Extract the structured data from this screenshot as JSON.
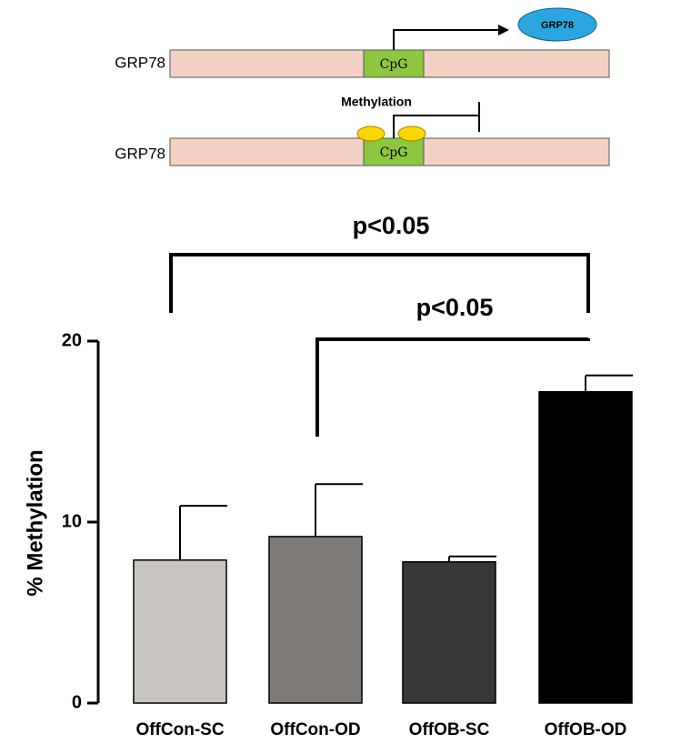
{
  "diagram": {
    "gene_label_1": "GRP78",
    "gene_label_2": "GRP78",
    "cpg_1": "CpG",
    "cpg_2": "CpG",
    "product": "GRP78",
    "methylation": "Methylation"
  },
  "chart_data": {
    "type": "bar",
    "ylabel": "% Methylation",
    "categories": [
      "OffCon-SC",
      "OffCon-OD",
      "OffOB-SC",
      "OffOB-OD"
    ],
    "values": [
      7.9,
      9.2,
      7.8,
      17.2
    ],
    "errors": [
      3.0,
      2.9,
      0.3,
      0.9
    ],
    "colors": [
      "#c9c6c2",
      "#7f7b79",
      "#3a3836",
      "#000000"
    ],
    "ylim": [
      0,
      20
    ],
    "yticks": [
      0,
      10,
      20
    ],
    "annotations": [
      "p<0.05",
      "p<0.05"
    ]
  }
}
